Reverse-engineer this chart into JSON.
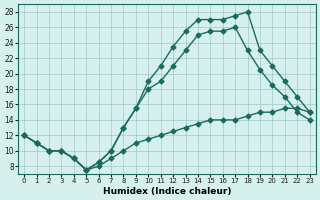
{
  "xlabel": "Humidex (Indice chaleur)",
  "ylabel": "",
  "bg_color": "#d6f0ee",
  "line_color": "#1a6b5e",
  "xlim": [
    -0.5,
    23.5
  ],
  "ylim": [
    7,
    29
  ],
  "yticks": [
    8,
    10,
    12,
    14,
    16,
    18,
    20,
    22,
    24,
    26,
    28
  ],
  "xticks": [
    0,
    1,
    2,
    3,
    4,
    5,
    6,
    7,
    8,
    9,
    10,
    11,
    12,
    13,
    14,
    15,
    16,
    17,
    18,
    19,
    20,
    21,
    22,
    23
  ],
  "line1_x": [
    0,
    1,
    2,
    3,
    4,
    5,
    6,
    7,
    8,
    9,
    10,
    11,
    12,
    13,
    14,
    15,
    16,
    17,
    18,
    19,
    20,
    21,
    22,
    23
  ],
  "line1_y": [
    12,
    11,
    10,
    10,
    9,
    7.5,
    8.5,
    10,
    13,
    15.5,
    19,
    21,
    23.5,
    25.5,
    27,
    27,
    27,
    27.5,
    28,
    23,
    21,
    19,
    17,
    15
  ],
  "line2_x": [
    0,
    1,
    2,
    3,
    4,
    5,
    6,
    7,
    8,
    9,
    10,
    11,
    12,
    13,
    14,
    15,
    16,
    17,
    18,
    19,
    20,
    21,
    22,
    23
  ],
  "line2_y": [
    12,
    11,
    10,
    10,
    9,
    7.5,
    8.5,
    10,
    13,
    15.5,
    18,
    19,
    21,
    23,
    25,
    25.5,
    25.5,
    26,
    23,
    20.5,
    18.5,
    17,
    15,
    14
  ],
  "line3_x": [
    0,
    1,
    2,
    3,
    4,
    5,
    6,
    7,
    8,
    9,
    10,
    11,
    12,
    13,
    14,
    15,
    16,
    17,
    18,
    19,
    20,
    21,
    22,
    23
  ],
  "line3_y": [
    12,
    11,
    10,
    10,
    9,
    7.5,
    8,
    9,
    10,
    11,
    11.5,
    12,
    12.5,
    13,
    13.5,
    14,
    14,
    14,
    14.5,
    15,
    15,
    15.5,
    15.5,
    15
  ]
}
